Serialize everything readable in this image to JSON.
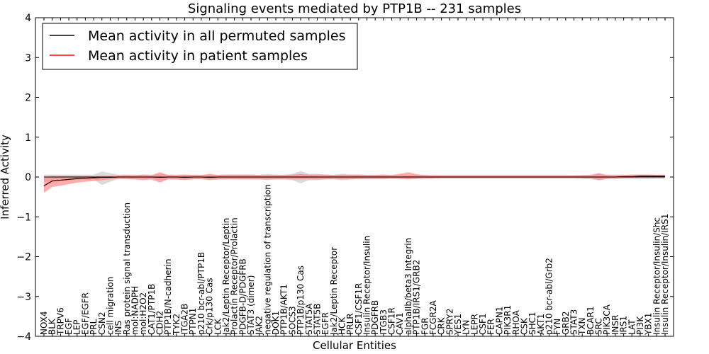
{
  "chart_data": {
    "type": "line",
    "title": "Signaling events mediated by PTP1B -- 231 samples",
    "xlabel": "Cellular Entities",
    "ylabel": "Inferred Activity",
    "ylim": [
      -4,
      4
    ],
    "yticks": [
      -4,
      -3,
      -2,
      -1,
      0,
      1,
      2,
      3,
      4
    ],
    "ytick_labels": [
      "−4",
      "−3",
      "−2",
      "−1",
      "0",
      "1",
      "2",
      "3",
      "4"
    ],
    "grid": false,
    "legend_position": "top-left",
    "categories": [
      "NOX4",
      "BLK",
      "TRPV6",
      "EGF",
      "LEP",
      "EGF/EGFR",
      "PRL",
      "CSN2",
      "cell migration",
      "INS",
      "Ras protein signal transduction",
      "mol:NADPH",
      "mol:H2O2",
      "CAT1/PTP1B",
      "CDH2",
      "PTP1B/N-cadherin",
      "TYK2",
      "ITGA2B",
      "PTPN1",
      "p210 bcr-abl/PTP1B",
      "Crk/p130 Cas",
      "LCK",
      "Jak2/Leptin Receptor/Leptin",
      "Prolactin Receptor/Prolactin",
      "PDGFB-D/PDGFRB",
      "STAT3 (dimer)",
      "JAK2",
      "negative regulation of transcription",
      "DOK1",
      "PTP1B/AKT1",
      "SOCS3",
      "PTP1B/p130 Cas",
      "STAT5A",
      "STAT5B",
      "EGFR",
      "Jak2/Leptin Receptor",
      "HCK",
      "PRLR",
      "CSF1/CSF1R",
      "Insulin Receptor/Insulin",
      "PDGFRB",
      "ITGB3",
      "CSF1R",
      "CAV1",
      "alphaIIb/beta3 Integrin",
      "PTP1B/IRS1/GRB2",
      "FGR",
      "FCGR2A",
      "CRK",
      "SPRY2",
      "YES1",
      "LYN",
      "LEPR",
      "CSF1",
      "FER",
      "CAPN1",
      "PIK3R1",
      "RHOA",
      "CSK",
      "SHC1",
      "AKT1",
      "p210 bcr-abl/Grb2",
      "FYN",
      "GRB2",
      "STAT3",
      "TXN",
      "BCAR1",
      "SRC",
      "PIK3CA",
      "INSR",
      "IRS1",
      "LAT",
      "PI3K",
      "YBX1",
      "Insulin Receptor/Insulin/Shc",
      "Insulin Receptor/Insulin/IRS1"
    ],
    "series": [
      {
        "name": "Mean activity in all permuted samples",
        "color": "#000000",
        "values": [
          0,
          0,
          0,
          0,
          0,
          0,
          0,
          0,
          0,
          0,
          0,
          0,
          0,
          0,
          0,
          0,
          0,
          0,
          0,
          0,
          0,
          0,
          0,
          0,
          0,
          0,
          0,
          0,
          0,
          0,
          0,
          0,
          0,
          0,
          0,
          0,
          0,
          0,
          0,
          0,
          0,
          0,
          0,
          0,
          0,
          0,
          0,
          0,
          0,
          0,
          0,
          0,
          0,
          0,
          0,
          0,
          0,
          0,
          0,
          0,
          0,
          0,
          0,
          0,
          0,
          0,
          0,
          0,
          0,
          0,
          0,
          0,
          0,
          0,
          0,
          0
        ],
        "band_lower": [
          -0.12,
          -0.12,
          -0.1,
          -0.08,
          -0.08,
          -0.06,
          -0.06,
          -0.2,
          -0.12,
          -0.05,
          -0.06,
          -0.06,
          -0.06,
          -0.06,
          -0.08,
          -0.06,
          -0.06,
          -0.06,
          -0.05,
          -0.06,
          -0.06,
          -0.05,
          -0.05,
          -0.06,
          -0.06,
          -0.06,
          -0.06,
          -0.08,
          -0.06,
          -0.06,
          -0.08,
          -0.16,
          -0.08,
          -0.08,
          -0.06,
          -0.06,
          -0.08,
          -0.06,
          -0.06,
          -0.05,
          -0.05,
          -0.05,
          -0.05,
          -0.04,
          -0.04,
          -0.04,
          -0.04,
          -0.04,
          -0.04,
          -0.04,
          -0.04,
          -0.04,
          -0.04,
          -0.04,
          -0.04,
          -0.04,
          -0.04,
          -0.04,
          -0.04,
          -0.04,
          -0.04,
          -0.04,
          -0.04,
          -0.04,
          -0.04,
          -0.04,
          -0.06,
          -0.08,
          -0.06,
          -0.06,
          -0.05,
          -0.05,
          -0.06,
          -0.06,
          -0.05,
          -0.05
        ],
        "band_upper": [
          0.06,
          0.06,
          0.06,
          0.06,
          0.06,
          0.06,
          0.06,
          0.14,
          0.1,
          0.06,
          0.06,
          0.06,
          0.06,
          0.06,
          0.08,
          0.06,
          0.06,
          0.06,
          0.06,
          0.06,
          0.06,
          0.06,
          0.06,
          0.06,
          0.06,
          0.06,
          0.06,
          0.08,
          0.06,
          0.06,
          0.08,
          0.15,
          0.08,
          0.08,
          0.06,
          0.06,
          0.08,
          0.06,
          0.06,
          0.06,
          0.06,
          0.06,
          0.05,
          0.05,
          0.05,
          0.05,
          0.05,
          0.05,
          0.05,
          0.05,
          0.05,
          0.05,
          0.05,
          0.05,
          0.05,
          0.05,
          0.05,
          0.05,
          0.05,
          0.05,
          0.05,
          0.05,
          0.05,
          0.05,
          0.05,
          0.05,
          0.06,
          0.07,
          0.06,
          0.06,
          0.06,
          0.06,
          0.06,
          0.06,
          0.06,
          0.06
        ]
      },
      {
        "name": "Mean activity in patient samples",
        "color": "#ff0000",
        "line_color": "#000000",
        "values": [
          -0.22,
          -0.1,
          -0.08,
          -0.06,
          -0.04,
          -0.03,
          -0.02,
          -0.01,
          -0.01,
          0,
          0,
          0,
          0,
          0,
          -0.01,
          0,
          0,
          -0.01,
          0,
          0,
          -0.01,
          0,
          0,
          0,
          0,
          0,
          0,
          0,
          0,
          0,
          0,
          0,
          0,
          0,
          0,
          0,
          0,
          0,
          0,
          0,
          0,
          0,
          0,
          0,
          0,
          0,
          0,
          0,
          0,
          0,
          0,
          0,
          0,
          0,
          0,
          0,
          0,
          0,
          0,
          0,
          0,
          0,
          0,
          0,
          0,
          0,
          0,
          0,
          0,
          0,
          0.01,
          0.01,
          0.02,
          0.02,
          0.02,
          0.02
        ],
        "band_lower": [
          -0.4,
          -0.25,
          -0.22,
          -0.18,
          -0.14,
          -0.12,
          -0.1,
          -0.08,
          -0.06,
          -0.05,
          -0.05,
          -0.06,
          -0.08,
          -0.06,
          -0.14,
          -0.06,
          -0.06,
          -0.08,
          -0.06,
          -0.05,
          -0.08,
          -0.06,
          -0.06,
          -0.06,
          -0.06,
          -0.06,
          -0.06,
          -0.06,
          -0.06,
          -0.06,
          -0.06,
          -0.06,
          -0.06,
          -0.06,
          -0.06,
          -0.05,
          -0.06,
          -0.06,
          -0.05,
          -0.05,
          -0.05,
          -0.05,
          -0.04,
          -0.05,
          -0.06,
          -0.05,
          -0.04,
          -0.04,
          -0.03,
          -0.03,
          -0.03,
          -0.03,
          -0.03,
          -0.03,
          -0.03,
          -0.03,
          -0.03,
          -0.03,
          -0.03,
          -0.03,
          -0.03,
          -0.03,
          -0.03,
          -0.03,
          -0.03,
          -0.04,
          -0.03,
          -0.08,
          -0.04,
          -0.03,
          -0.02,
          -0.02,
          -0.01,
          -0.01,
          -0.01,
          -0.01
        ],
        "band_upper": [
          0.0,
          0.02,
          0.02,
          0.02,
          0.02,
          0.02,
          0.02,
          0.03,
          0.03,
          0.04,
          0.05,
          0.04,
          0.06,
          0.04,
          0.12,
          0.05,
          0.04,
          0.06,
          0.05,
          0.05,
          0.08,
          0.05,
          0.06,
          0.06,
          0.06,
          0.06,
          0.05,
          0.05,
          0.05,
          0.05,
          0.06,
          0.08,
          0.06,
          0.06,
          0.06,
          0.05,
          0.06,
          0.06,
          0.06,
          0.05,
          0.05,
          0.06,
          0.05,
          0.08,
          0.12,
          0.07,
          0.05,
          0.04,
          0.04,
          0.04,
          0.04,
          0.04,
          0.04,
          0.04,
          0.04,
          0.04,
          0.04,
          0.04,
          0.04,
          0.04,
          0.04,
          0.04,
          0.04,
          0.04,
          0.04,
          0.05,
          0.05,
          0.1,
          0.05,
          0.04,
          0.05,
          0.06,
          0.06,
          0.06,
          0.05,
          0.05
        ]
      }
    ],
    "band_colors": {
      "permuted": "#cccccc",
      "patient": "#ff8080"
    }
  }
}
